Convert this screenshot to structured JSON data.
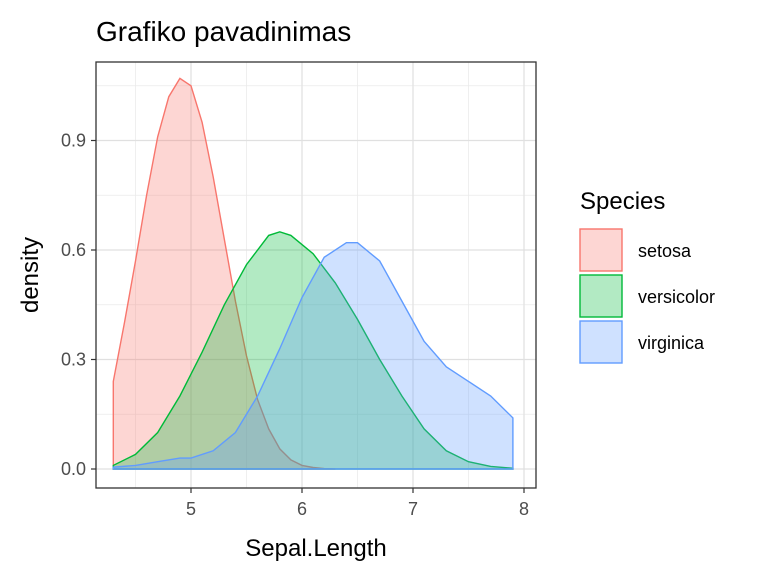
{
  "chart_data": {
    "type": "area",
    "title": "Grafiko pavadinimas",
    "xlabel": "Sepal.Length",
    "ylabel": "density",
    "xlim": [
      4.3,
      7.9
    ],
    "ylim": [
      0,
      1.07
    ],
    "xticks": [
      "5",
      "6",
      "7",
      "8"
    ],
    "yticks": [
      "0.0",
      "0.3",
      "0.6",
      "0.9"
    ],
    "grid": true,
    "legend": {
      "title": "Species",
      "position": "right"
    },
    "series": [
      {
        "name": "setosa",
        "color": "#F8766D",
        "x": [
          4.3,
          4.4,
          4.5,
          4.6,
          4.7,
          4.8,
          4.9,
          5.0,
          5.1,
          5.2,
          5.3,
          5.4,
          5.5,
          5.6,
          5.7,
          5.8,
          5.9,
          6.0,
          6.1,
          6.2,
          6.3
        ],
        "y": [
          0.24,
          0.4,
          0.57,
          0.75,
          0.91,
          1.02,
          1.07,
          1.05,
          0.95,
          0.8,
          0.63,
          0.46,
          0.31,
          0.19,
          0.11,
          0.055,
          0.025,
          0.01,
          0.004,
          0.001,
          0.0
        ]
      },
      {
        "name": "versicolor",
        "color": "#00BA38",
        "x": [
          4.3,
          4.5,
          4.7,
          4.9,
          5.1,
          5.3,
          5.5,
          5.7,
          5.8,
          5.9,
          6.1,
          6.3,
          6.5,
          6.7,
          6.9,
          7.1,
          7.3,
          7.5,
          7.7,
          7.9
        ],
        "y": [
          0.01,
          0.04,
          0.1,
          0.2,
          0.32,
          0.45,
          0.56,
          0.64,
          0.65,
          0.64,
          0.59,
          0.51,
          0.41,
          0.3,
          0.2,
          0.11,
          0.05,
          0.02,
          0.007,
          0.002
        ]
      },
      {
        "name": "virginica",
        "color": "#619CFF",
        "x": [
          4.3,
          4.5,
          4.7,
          4.9,
          5.0,
          5.2,
          5.4,
          5.6,
          5.8,
          6.0,
          6.2,
          6.4,
          6.5,
          6.7,
          6.9,
          7.1,
          7.3,
          7.5,
          7.7,
          7.9
        ],
        "y": [
          0.005,
          0.01,
          0.02,
          0.03,
          0.03,
          0.05,
          0.1,
          0.2,
          0.33,
          0.47,
          0.58,
          0.62,
          0.62,
          0.57,
          0.46,
          0.35,
          0.28,
          0.24,
          0.2,
          0.14
        ]
      }
    ]
  }
}
